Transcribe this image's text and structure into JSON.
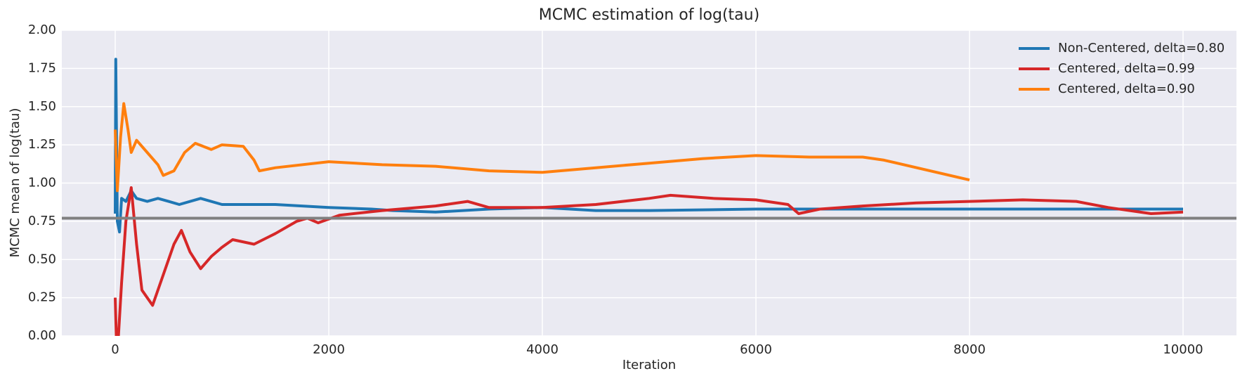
{
  "chart_data": {
    "type": "line",
    "title": "MCMC estimation of log(tau)",
    "xlabel": "Iteration",
    "ylabel": "MCMC mean of log(tau)",
    "xlim": [
      -500,
      10500
    ],
    "ylim": [
      0,
      2
    ],
    "xticks": [
      0,
      2000,
      4000,
      6000,
      8000,
      10000
    ],
    "yticks": [
      {
        "value": 0,
        "label": "0.00"
      },
      {
        "value": 0.25,
        "label": "0.25"
      },
      {
        "value": 0.5,
        "label": "0.50"
      },
      {
        "value": 0.75,
        "label": "0.75"
      },
      {
        "value": 1,
        "label": "1.00"
      },
      {
        "value": 1.25,
        "label": "1.25"
      },
      {
        "value": 1.5,
        "label": "1.50"
      },
      {
        "value": 1.75,
        "label": "1.75"
      },
      {
        "value": 2,
        "label": "2.00"
      }
    ],
    "grid": true,
    "legend": "upper-right",
    "hline": {
      "value": 0.77,
      "color": "#808080"
    },
    "series": [
      {
        "name": "Non-Centered, delta=0.80",
        "color": "#1f77b4",
        "x": [
          0,
          5,
          20,
          40,
          60,
          100,
          150,
          200,
          300,
          400,
          500,
          600,
          800,
          1000,
          1500,
          2000,
          2400,
          2600,
          3000,
          3500,
          4000,
          4500,
          5000,
          6000,
          7000,
          8000,
          9000,
          10000
        ],
        "values": [
          0.8,
          1.81,
          0.75,
          0.68,
          0.9,
          0.88,
          0.95,
          0.9,
          0.88,
          0.9,
          0.88,
          0.86,
          0.9,
          0.86,
          0.86,
          0.84,
          0.83,
          0.82,
          0.81,
          0.83,
          0.84,
          0.82,
          0.82,
          0.83,
          0.83,
          0.83,
          0.83,
          0.83
        ]
      },
      {
        "name": "Centered, delta=0.99",
        "color": "#d62728",
        "x": [
          0,
          10,
          30,
          60,
          100,
          150,
          200,
          250,
          350,
          450,
          550,
          620,
          700,
          800,
          900,
          1000,
          1100,
          1300,
          1500,
          1700,
          1800,
          1900,
          2100,
          2500,
          3000,
          3300,
          3500,
          4000,
          4500,
          5000,
          5200,
          5600,
          6000,
          6300,
          6400,
          6600,
          7000,
          7500,
          8000,
          8500,
          9000,
          9300,
          9700,
          10000
        ],
        "values": [
          0.25,
          0,
          0,
          0.35,
          0.75,
          0.97,
          0.6,
          0.3,
          0.2,
          0.4,
          0.6,
          0.69,
          0.55,
          0.44,
          0.52,
          0.58,
          0.63,
          0.6,
          0.67,
          0.75,
          0.77,
          0.74,
          0.79,
          0.82,
          0.85,
          0.88,
          0.84,
          0.84,
          0.86,
          0.9,
          0.92,
          0.9,
          0.89,
          0.86,
          0.8,
          0.83,
          0.85,
          0.87,
          0.88,
          0.89,
          0.88,
          0.84,
          0.8,
          0.81
        ]
      },
      {
        "name": "Centered, delta=0.90",
        "color": "#ff7f0e",
        "x": [
          0,
          20,
          50,
          80,
          120,
          150,
          200,
          300,
          400,
          450,
          550,
          650,
          750,
          900,
          1000,
          1200,
          1300,
          1350,
          1500,
          2000,
          2500,
          3000,
          3500,
          4000,
          4500,
          5000,
          5500,
          6000,
          6500,
          7000,
          7200,
          8000
        ],
        "values": [
          1.35,
          0.95,
          1.3,
          1.52,
          1.35,
          1.2,
          1.28,
          1.2,
          1.12,
          1.05,
          1.08,
          1.2,
          1.26,
          1.22,
          1.25,
          1.24,
          1.15,
          1.08,
          1.1,
          1.14,
          1.12,
          1.11,
          1.08,
          1.07,
          1.1,
          1.13,
          1.16,
          1.18,
          1.17,
          1.17,
          1.15,
          1.02
        ]
      }
    ]
  }
}
